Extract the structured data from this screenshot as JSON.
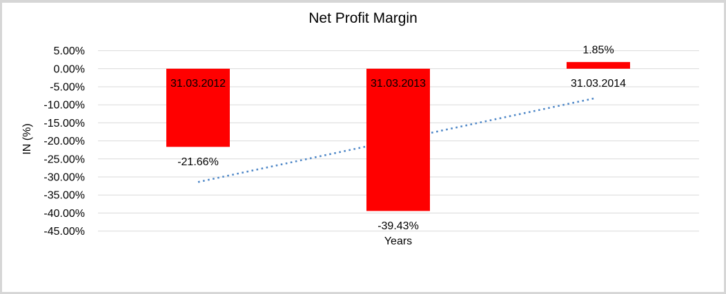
{
  "chart_data": {
    "type": "bar",
    "title": "Net Profit Margin",
    "xlabel": "Years",
    "ylabel": "IN (%)",
    "categories": [
      "31.03.2012",
      "31.03.2013",
      "31.03.2014"
    ],
    "series": [
      {
        "name": "Net Profit Margin",
        "values": [
          -21.66,
          -39.43,
          1.85
        ]
      }
    ],
    "data_labels": [
      "-21.66%",
      "-39.43%",
      "1.85%"
    ],
    "y_ticks": [
      "5.00%",
      "0.00%",
      "-5.00%",
      "-10.00%",
      "-15.00%",
      "-20.00%",
      "-25.00%",
      "-30.00%",
      "-35.00%",
      "-40.00%",
      "-45.00%"
    ],
    "y_tick_values": [
      5,
      0,
      -5,
      -10,
      -15,
      -20,
      -25,
      -30,
      -35,
      -40,
      -45
    ],
    "ylim": [
      -45,
      5
    ],
    "grid": true,
    "legend_position": "none",
    "bar_color": "#ff0000",
    "gridline_color": "#d9d9d9",
    "trendline": {
      "type": "linear",
      "style": "dotted",
      "color": "#4e87c7",
      "start_value": -31.4,
      "end_value": -8.1
    }
  }
}
